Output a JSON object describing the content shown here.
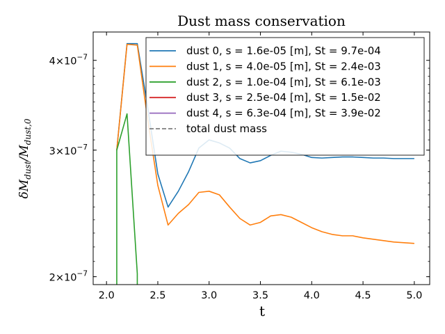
{
  "chart_data": {
    "type": "line",
    "title": "Dust mass conservation",
    "xlabel": "t",
    "ylabel_main": "δM",
    "ylabel_main_sub": "dust",
    "ylabel_div": "/M",
    "ylabel_div_sub": "dust,0",
    "xlim": [
      1.87,
      5.15
    ],
    "ylim": [
      1.95e-07,
      4.38e-07
    ],
    "y_scale": "log",
    "x_ticks": [
      {
        "value": 2.0,
        "label": "2.0"
      },
      {
        "value": 2.5,
        "label": "2.5"
      },
      {
        "value": 3.0,
        "label": "3.0"
      },
      {
        "value": 3.5,
        "label": "3.5"
      },
      {
        "value": 4.0,
        "label": "4.0"
      },
      {
        "value": 4.5,
        "label": "4.5"
      },
      {
        "value": 5.0,
        "label": "5.0"
      }
    ],
    "y_ticks": [
      {
        "value": 2e-07,
        "mantissa": "2",
        "base": "×10",
        "exp": "−7"
      },
      {
        "value": 3e-07,
        "mantissa": "3",
        "base": "×10",
        "exp": "−7"
      },
      {
        "value": 4e-07,
        "mantissa": "4",
        "base": "×10",
        "exp": "−7"
      }
    ],
    "legend_position": "upper-right",
    "series": [
      {
        "name": "dust 0, s = 1.6e-05 [m], St = 9.7e-04",
        "color": "#1f77b4",
        "style": "solid",
        "x": [
          2.1,
          2.2,
          2.3,
          2.4,
          2.5,
          2.6,
          2.7,
          2.8,
          2.9,
          3.0,
          3.1,
          3.2,
          3.3,
          3.4,
          3.5,
          3.6,
          3.7,
          3.8,
          3.9,
          4.0,
          4.1,
          4.2,
          4.3,
          4.4,
          4.5,
          4.6,
          4.7,
          4.8,
          4.9,
          5.0
        ],
        "y": [
          3e-07,
          4.22e-07,
          4.22e-07,
          3.45e-07,
          2.78e-07,
          2.5e-07,
          2.63e-07,
          2.8e-07,
          3.02e-07,
          3.1e-07,
          3.07e-07,
          3.02e-07,
          2.92e-07,
          2.88e-07,
          2.9e-07,
          2.95e-07,
          2.99e-07,
          2.98e-07,
          2.96e-07,
          2.93e-07,
          2.925e-07,
          2.93e-07,
          2.935e-07,
          2.935e-07,
          2.93e-07,
          2.925e-07,
          2.925e-07,
          2.92e-07,
          2.92e-07,
          2.92e-07
        ]
      },
      {
        "name": "dust 1, s = 4.0e-05 [m], St = 2.4e-03",
        "color": "#ff7f0e",
        "style": "solid",
        "x": [
          2.1,
          2.2,
          2.3,
          2.4,
          2.5,
          2.6,
          2.7,
          2.8,
          2.9,
          3.0,
          3.1,
          3.2,
          3.3,
          3.4,
          3.5,
          3.6,
          3.7,
          3.8,
          3.9,
          4.0,
          4.1,
          4.2,
          4.3,
          4.4,
          4.5,
          4.6,
          4.7,
          4.8,
          4.9,
          5.0
        ],
        "y": [
          3e-07,
          4.21e-07,
          4.2e-07,
          3.32e-07,
          2.68e-07,
          2.36e-07,
          2.45e-07,
          2.52e-07,
          2.62e-07,
          2.63e-07,
          2.6e-07,
          2.5e-07,
          2.41e-07,
          2.36e-07,
          2.38e-07,
          2.43e-07,
          2.44e-07,
          2.42e-07,
          2.38e-07,
          2.34e-07,
          2.31e-07,
          2.29e-07,
          2.28e-07,
          2.28e-07,
          2.265e-07,
          2.255e-07,
          2.245e-07,
          2.235e-07,
          2.23e-07,
          2.225e-07
        ]
      },
      {
        "name": "dust 2, s = 1.0e-04 [m], St = 6.1e-03",
        "color": "#2ca02c",
        "style": "solid",
        "x": [
          2.1,
          2.1,
          2.2,
          2.3,
          2.3
        ],
        "y": [
          1.9e-07,
          3e-07,
          3.37e-07,
          2.02e-07,
          1.9e-07
        ]
      },
      {
        "name": "dust 3, s = 2.5e-04 [m], St = 1.5e-02",
        "color": "#d62728",
        "style": "solid",
        "x": [],
        "y": []
      },
      {
        "name": "dust 4, s = 6.3e-04 [m], St = 3.9e-02",
        "color": "#9467bd",
        "style": "solid",
        "x": [],
        "y": []
      },
      {
        "name": "total dust mass",
        "color": "#7f7f7f",
        "style": "dashed",
        "x": [],
        "y": []
      }
    ]
  }
}
